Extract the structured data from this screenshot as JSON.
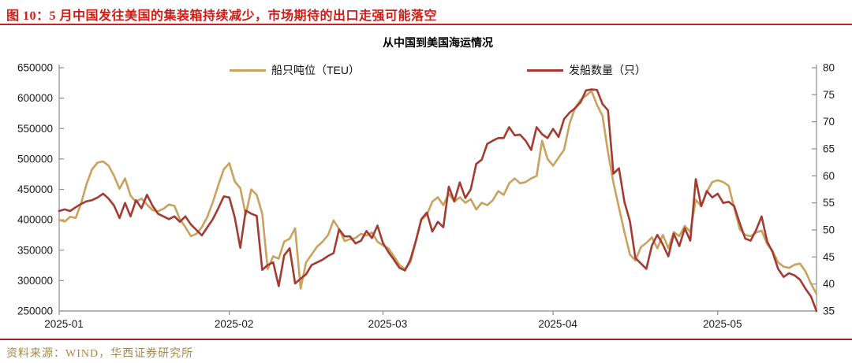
{
  "figure": {
    "title": "图 10：5 月中国发往美国的集装箱持续减少，市场期待的出口走强可能落空",
    "title_color": "#cf1d15",
    "header_rule_color": "#c2261b",
    "footer_rule_color": "#9b2226"
  },
  "footer": {
    "source": "资料来源：WIND，华西证券研究所",
    "source_color": "#a6874e"
  },
  "chart_data": {
    "type": "line",
    "title": "从中国到美国海运情况",
    "x_start_date": "2025-01-01",
    "x_frequency": "daily",
    "x_tick_labels": [
      "2025-01",
      "2025-02",
      "2025-03",
      "2025-04",
      "2025-05"
    ],
    "x_tick_day_offsets": [
      0,
      31,
      59,
      90,
      120
    ],
    "grid": false,
    "legend_position": "top",
    "left_axis": {
      "min": 250000,
      "max": 650000,
      "tick_step": 50000,
      "tick_labels": [
        "650000",
        "600000",
        "550000",
        "500000",
        "450000",
        "400000",
        "350000",
        "300000",
        "250000"
      ]
    },
    "right_axis": {
      "min": 35,
      "max": 80,
      "tick_step": 5,
      "tick_labels": [
        "80",
        "75",
        "70",
        "65",
        "60",
        "55",
        "50",
        "45",
        "40",
        "35"
      ]
    },
    "axis_color": "#8c8c8c",
    "tick_label_color": "#1a1a1a",
    "series": [
      {
        "name": "船只吨位（TEU）",
        "axis": "left",
        "color": "#c8a25e",
        "values": [
          400000,
          397000,
          405000,
          403000,
          427000,
          459000,
          483000,
          494000,
          496000,
          489000,
          472000,
          451000,
          468000,
          440000,
          429000,
          435000,
          425000,
          416000,
          414000,
          418000,
          425000,
          423000,
          401000,
          388000,
          373000,
          377000,
          388000,
          405000,
          429000,
          457000,
          483000,
          493000,
          463000,
          452000,
          408000,
          450000,
          441000,
          410000,
          319000,
          340000,
          336000,
          364000,
          369000,
          386000,
          287000,
          330000,
          343000,
          356000,
          364000,
          375000,
          399000,
          385000,
          365000,
          368000,
          370000,
          377000,
          374000,
          379000,
          364000,
          358000,
          353000,
          340000,
          326000,
          319000,
          330000,
          365000,
          400000,
          408000,
          430000,
          437000,
          424000,
          443000,
          430000,
          437000,
          428000,
          434000,
          417000,
          428000,
          424000,
          432000,
          447000,
          441000,
          460000,
          468000,
          460000,
          462000,
          468000,
          472000,
          530000,
          500000,
          489000,
          502000,
          515000,
          558000,
          584000,
          597000,
          604000,
          612000,
          589000,
          571000,
          511000,
          461000,
          420000,
          380000,
          343000,
          333000,
          355000,
          362000,
          371000,
          353000,
          375000,
          353000,
          380000,
          373000,
          390000,
          380000,
          433000,
          422000,
          446000,
          462000,
          465000,
          462000,
          456000,
          420000,
          385000,
          375000,
          373000,
          379000,
          382000,
          360000,
          349000,
          330000,
          323000,
          321000,
          326000,
          328000,
          315000,
          295000,
          278000
        ]
      },
      {
        "name": "发船数量（只）",
        "axis": "right",
        "color": "#a33b32",
        "values": [
          53.5,
          53.8,
          53.5,
          54.2,
          54.8,
          55.3,
          55.5,
          56.0,
          56.7,
          55.8,
          54.5,
          52.2,
          55.0,
          52.5,
          55.5,
          54.0,
          56.5,
          54.5,
          53.0,
          52.5,
          52.0,
          52.5,
          51.5,
          52.5,
          51.0,
          50.0,
          49.0,
          50.5,
          52.0,
          54.0,
          56.2,
          56.0,
          52.3,
          46.7,
          53.6,
          53.0,
          52.6,
          42.6,
          43.5,
          44.0,
          39.6,
          45.3,
          46.6,
          40.1,
          41.0,
          41.8,
          43.5,
          44.0,
          44.5,
          45.2,
          45.7,
          50.1,
          48.8,
          48.8,
          47.5,
          48.0,
          49.8,
          48.5,
          50.8,
          47.6,
          45.9,
          44.5,
          43.0,
          42.5,
          44.5,
          48.0,
          52.0,
          53.2,
          49.7,
          51.5,
          50.5,
          58.0,
          55.3,
          58.8,
          55.9,
          57.5,
          62.2,
          63.0,
          65.9,
          66.5,
          67.0,
          67.0,
          69.0,
          67.5,
          67.6,
          66.5,
          64.8,
          69.0,
          67.7,
          67.0,
          68.7,
          67.2,
          70.5,
          71.7,
          72.5,
          73.6,
          75.8,
          76.0,
          75.9,
          73.3,
          72.1,
          60.4,
          61.4,
          55.2,
          51.6,
          44.8,
          43.8,
          42.8,
          47.1,
          49.1,
          47.3,
          45.1,
          49.3,
          47.0,
          50.3,
          48.0,
          59.4,
          54.4,
          57.2,
          56.0,
          56.7,
          55.0,
          55.2,
          54.4,
          51.3,
          48.4,
          48.0,
          50.0,
          52.5,
          47.9,
          45.9,
          42.8,
          41.3,
          42.0,
          41.6,
          40.8,
          39.1,
          37.7,
          35.0
        ]
      }
    ]
  }
}
